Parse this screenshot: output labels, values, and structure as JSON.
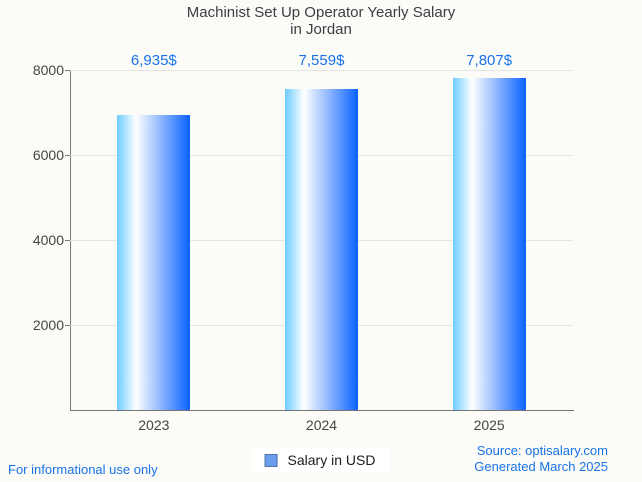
{
  "title": {
    "line1": "Machinist Set Up Operator Yearly Salary",
    "line2": "in Jordan"
  },
  "chart_data": {
    "type": "bar",
    "title": "Machinist Set Up Operator Yearly Salary in Jordan",
    "categories": [
      "2023",
      "2024",
      "2025"
    ],
    "values": [
      6935,
      7559,
      7807
    ],
    "value_labels": [
      "6,935$",
      "7,559$",
      "7,807$"
    ],
    "series_name": "Salary in USD",
    "ylim": [
      0,
      8000
    ],
    "yticks": [
      2000,
      4000,
      6000,
      8000
    ],
    "grid": true,
    "legend_position": "bottom",
    "colors": {
      "bar_gradient_left": "#6ccdff",
      "bar_gradient_mid": "#ffffff",
      "bar_gradient_right": "#0a62ff",
      "value_label": "#1a73e8",
      "axis_text": "#454545",
      "axis_line": "#757575",
      "gridline": "#e4e4e1",
      "legend_swatch_fill": "#6d9eeb",
      "legend_swatch_border": "#4d74a8",
      "background": "#fbfbf8"
    }
  },
  "legend": {
    "label": "Salary in USD"
  },
  "footer": {
    "left_note": "For informational use only",
    "source_line1": "Source: optisalary.com",
    "source_line2": "Generated March 2025",
    "text_color": "#1a73e8"
  }
}
